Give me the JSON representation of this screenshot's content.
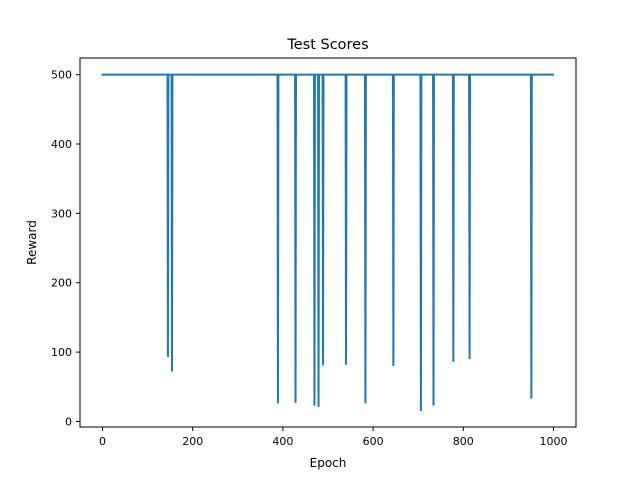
{
  "chart_data": {
    "type": "line",
    "title": "Test Scores",
    "xlabel": "Epoch",
    "ylabel": "Reward",
    "xlim": [
      -50,
      1050
    ],
    "ylim": [
      -8,
      524
    ],
    "xticks": [
      0,
      200,
      400,
      600,
      800,
      1000
    ],
    "yticks": [
      0,
      100,
      200,
      300,
      400,
      500
    ],
    "grid": false,
    "series": [
      {
        "color": "#1f77b4",
        "baseline": 500,
        "x_start": 0,
        "x_end": 999,
        "dips": [
          {
            "x": 145,
            "y": 93
          },
          {
            "x": 154,
            "y": 72
          },
          {
            "x": 389,
            "y": 26
          },
          {
            "x": 428,
            "y": 27
          },
          {
            "x": 470,
            "y": 23
          },
          {
            "x": 479,
            "y": 21
          },
          {
            "x": 489,
            "y": 81
          },
          {
            "x": 540,
            "y": 82
          },
          {
            "x": 583,
            "y": 26
          },
          {
            "x": 645,
            "y": 80
          },
          {
            "x": 706,
            "y": 15
          },
          {
            "x": 734,
            "y": 23
          },
          {
            "x": 778,
            "y": 86
          },
          {
            "x": 814,
            "y": 90
          },
          {
            "x": 951,
            "y": 33
          }
        ]
      }
    ]
  }
}
